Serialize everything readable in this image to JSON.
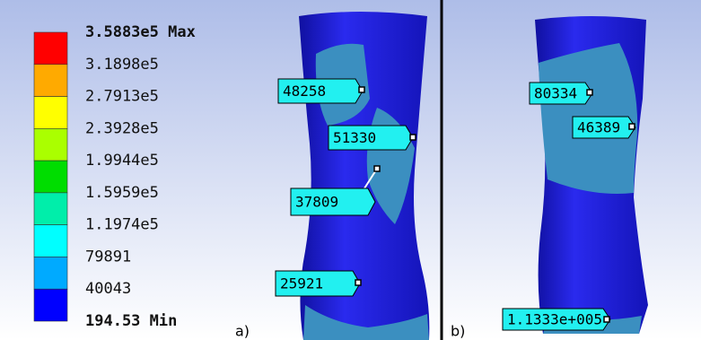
{
  "legend": {
    "labels": [
      "3.5883e5 Max",
      "3.1898e5",
      "2.7913e5",
      "2.3928e5",
      "1.9944e5",
      "1.5959e5",
      "1.1974e5",
      "79891",
      "40043",
      "194.53 Min"
    ],
    "colors": [
      "#ff0000",
      "#ffaa00",
      "#ffff00",
      "#aaff00",
      "#00dd00",
      "#00eeaa",
      "#00ffff",
      "#00aaff",
      "#0000ff"
    ]
  },
  "probes": {
    "a": [
      "48258",
      "51330",
      "37809",
      "25921"
    ],
    "b": [
      "80334",
      "46389",
      "1.1333e+005"
    ]
  },
  "panels": [
    "a)",
    "b)"
  ]
}
